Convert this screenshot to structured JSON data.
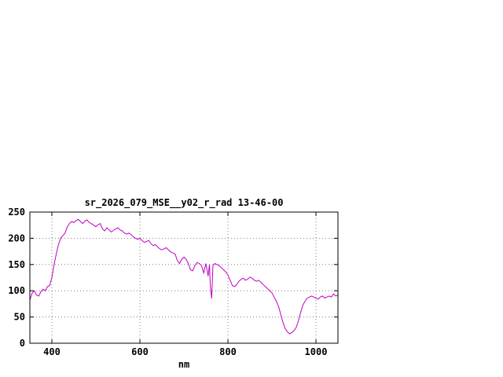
{
  "chart_data": {
    "type": "line",
    "title": "sr_2026_079_MSE__y02_r_rad 13-46-00",
    "xlabel": "nm",
    "ylabel": "",
    "xlim": [
      350,
      1050
    ],
    "ylim": [
      0,
      250
    ],
    "xticks": [
      400,
      600,
      800,
      1000
    ],
    "yticks": [
      0,
      50,
      100,
      150,
      200,
      250
    ],
    "grid": true,
    "legend": "none",
    "line_color": "#c000c0",
    "series": [
      {
        "name": "sr_2026_079_MSE__y02_r_rad",
        "x": [
          350,
          355,
          360,
          365,
          370,
          375,
          380,
          385,
          390,
          395,
          400,
          405,
          410,
          415,
          420,
          425,
          430,
          435,
          440,
          445,
          450,
          455,
          460,
          465,
          470,
          475,
          480,
          485,
          490,
          495,
          500,
          505,
          510,
          515,
          520,
          525,
          530,
          535,
          540,
          545,
          550,
          555,
          560,
          565,
          570,
          575,
          580,
          585,
          590,
          595,
          600,
          605,
          610,
          615,
          620,
          625,
          630,
          635,
          640,
          645,
          650,
          655,
          660,
          665,
          670,
          675,
          680,
          685,
          690,
          695,
          700,
          705,
          710,
          715,
          720,
          725,
          730,
          735,
          740,
          745,
          750,
          755,
          758,
          760,
          763,
          766,
          770,
          775,
          780,
          785,
          790,
          795,
          800,
          805,
          810,
          815,
          820,
          825,
          830,
          835,
          840,
          845,
          850,
          855,
          860,
          865,
          870,
          875,
          880,
          885,
          890,
          895,
          900,
          905,
          910,
          915,
          920,
          925,
          930,
          935,
          940,
          945,
          950,
          955,
          960,
          965,
          970,
          975,
          980,
          985,
          990,
          995,
          1000,
          1005,
          1010,
          1015,
          1020,
          1025,
          1030,
          1035,
          1040,
          1045,
          1050
        ],
        "y": [
          82,
          95,
          100,
          92,
          90,
          98,
          103,
          100,
          108,
          110,
          125,
          150,
          170,
          188,
          200,
          205,
          210,
          222,
          228,
          232,
          230,
          234,
          236,
          232,
          228,
          233,
          235,
          230,
          228,
          225,
          222,
          226,
          228,
          218,
          214,
          220,
          216,
          212,
          215,
          218,
          220,
          216,
          214,
          210,
          208,
          210,
          207,
          203,
          200,
          198,
          200,
          196,
          192,
          194,
          196,
          190,
          186,
          188,
          184,
          180,
          178,
          180,
          182,
          178,
          174,
          172,
          170,
          158,
          152,
          160,
          164,
          160,
          152,
          140,
          138,
          148,
          154,
          152,
          148,
          134,
          152,
          128,
          150,
          110,
          85,
          148,
          152,
          150,
          148,
          144,
          140,
          136,
          130,
          120,
          110,
          108,
          112,
          118,
          122,
          124,
          120,
          122,
          126,
          124,
          120,
          118,
          120,
          116,
          112,
          108,
          104,
          100,
          96,
          88,
          80,
          70,
          55,
          40,
          28,
          22,
          18,
          20,
          24,
          30,
          42,
          58,
          72,
          80,
          86,
          88,
          90,
          88,
          86,
          84,
          88,
          90,
          86,
          88,
          90,
          88,
          94,
          90,
          92
        ]
      }
    ]
  }
}
